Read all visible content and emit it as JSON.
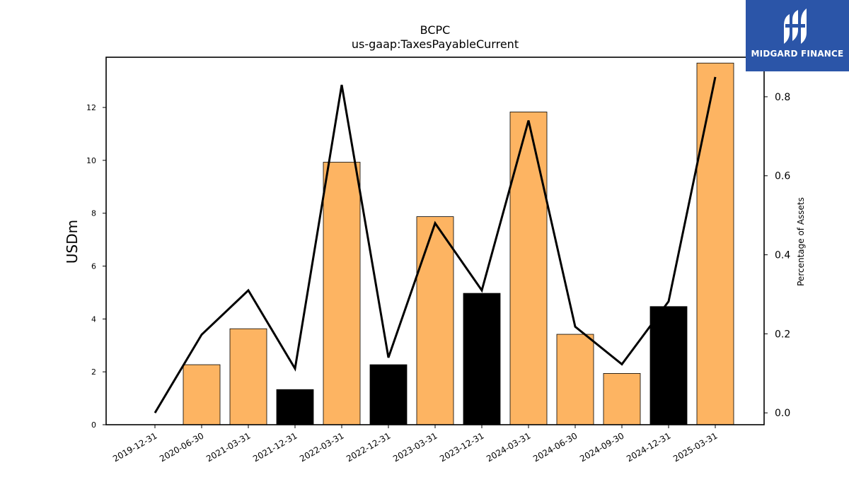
{
  "chart_data": {
    "type": "bar",
    "title": "BCPC",
    "subtitle": "us-gaap:TaxesPayableCurrent",
    "ylabel": "USDm",
    "y2label": "Percentage of Assets",
    "ylim": [
      0,
      13.9
    ],
    "y2lim": [
      -0.03,
      0.9
    ],
    "yticks": [
      "0",
      "2",
      "4",
      "6",
      "8",
      "10",
      "12"
    ],
    "y2ticks": [
      "0.0",
      "0.2",
      "0.4",
      "0.6",
      "0.8"
    ],
    "categories": [
      "2019-12-31",
      "2020-06-30",
      "2021-03-31",
      "2021-12-31",
      "2022-03-31",
      "2022-12-31",
      "2023-03-31",
      "2023-12-31",
      "2024-03-31",
      "2024-06-30",
      "2024-09-30",
      "2024-12-31",
      "2025-03-31"
    ],
    "series": [
      {
        "type": "bar",
        "values": [
          0,
          2.27,
          3.63,
          1.33,
          9.93,
          2.27,
          7.87,
          4.97,
          11.83,
          3.42,
          1.94,
          4.47,
          13.68
        ],
        "colors": [
          "#fdb462",
          "#fdb462",
          "#fdb462",
          "#000000",
          "#fdb462",
          "#000000",
          "#fdb462",
          "#000000",
          "#fdb462",
          "#fdb462",
          "#fdb462",
          "#000000",
          "#fdb462"
        ]
      },
      {
        "type": "line",
        "axis": "right",
        "color": "#000000",
        "values": [
          0.0,
          0.198,
          0.31,
          0.112,
          0.83,
          0.14,
          0.48,
          0.31,
          0.74,
          0.218,
          0.123,
          0.282,
          0.85
        ]
      }
    ],
    "grid": false,
    "legend": "none"
  },
  "logo": {
    "text": "MIDGARD FINANCE",
    "background": "#2b55a8"
  }
}
